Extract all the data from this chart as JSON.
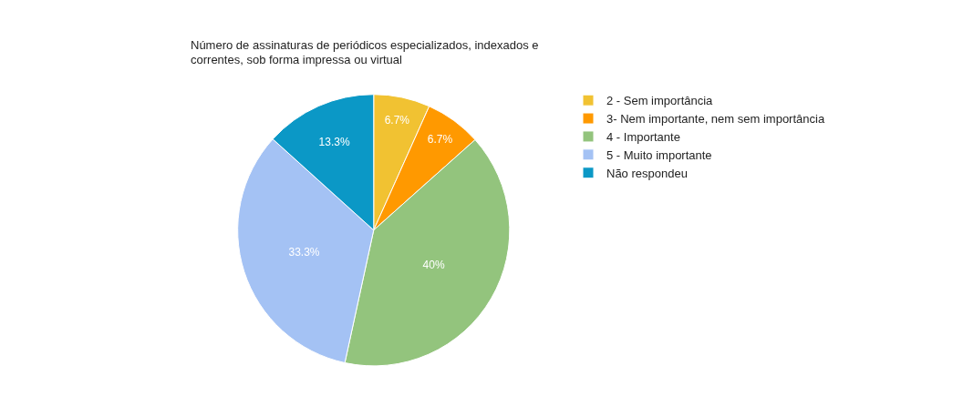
{
  "chart_data": {
    "type": "pie",
    "title": "Número de assinaturas de periódicos especializados, indexados e correntes, sob forma impressa ou virtual",
    "categories": [
      "2 - Sem importância",
      "3- Nem importante, nem sem importância",
      "4 - Importante",
      "5 - Muito importante",
      "Não respondeu"
    ],
    "values": [
      6.7,
      6.7,
      40,
      33.3,
      13.3
    ],
    "value_labels": [
      "6.7%",
      "6.7%",
      "40%",
      "33.3%",
      "13.3%"
    ],
    "colors": [
      "#f1c232",
      "#ff9900",
      "#93c47d",
      "#a4c2f4",
      "#0b98c6"
    ],
    "legend": "right"
  }
}
